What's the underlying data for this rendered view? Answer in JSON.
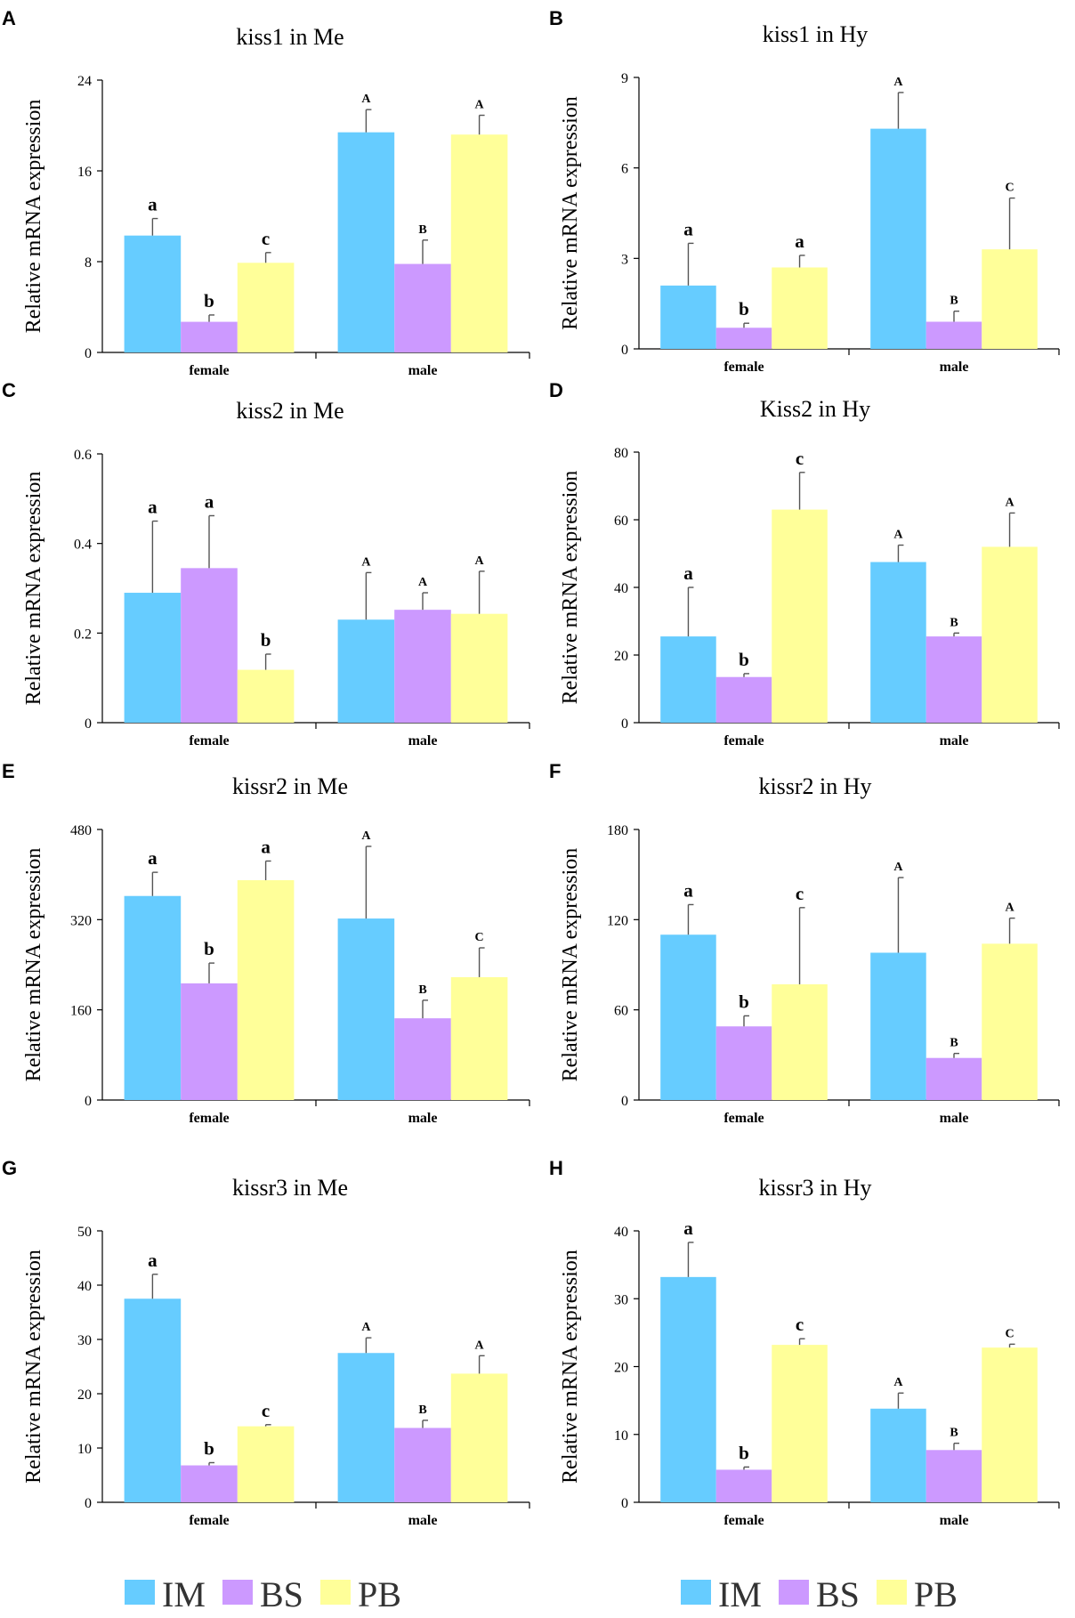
{
  "colors": {
    "IM": "#66ccff",
    "BS": "#cc99ff",
    "PB": "#ffff99"
  },
  "legend": [
    "IM",
    "BS",
    "PB"
  ],
  "chart_data": [
    {
      "panel": "A",
      "type": "bar",
      "title": "kiss1 in Me",
      "ylabel": "Relative mRNA expression",
      "categories": [
        "female",
        "male"
      ],
      "yticks": [
        "0",
        "8",
        "16",
        "24"
      ],
      "ylim": [
        0,
        24
      ],
      "series": [
        {
          "name": "IM",
          "values": [
            10.3,
            19.4
          ],
          "errors": [
            1.5,
            2.0
          ],
          "labels": [
            "a",
            "A"
          ]
        },
        {
          "name": "BS",
          "values": [
            2.7,
            7.8
          ],
          "errors": [
            0.6,
            2.1
          ],
          "labels": [
            "b",
            "B"
          ]
        },
        {
          "name": "PB",
          "values": [
            7.9,
            19.2
          ],
          "errors": [
            0.9,
            1.7
          ],
          "labels": [
            "c",
            "A"
          ]
        }
      ]
    },
    {
      "panel": "B",
      "type": "bar",
      "title": "kiss1 in Hy",
      "ylabel": "Relative mRNA expression",
      "categories": [
        "female",
        "male"
      ],
      "yticks": [
        "0",
        "3",
        "6",
        "9"
      ],
      "ylim": [
        0,
        9
      ],
      "series": [
        {
          "name": "IM",
          "values": [
            2.1,
            7.3
          ],
          "errors": [
            1.4,
            1.2
          ],
          "labels": [
            "a",
            "A"
          ]
        },
        {
          "name": "BS",
          "values": [
            0.7,
            0.9
          ],
          "errors": [
            0.15,
            0.35
          ],
          "labels": [
            "b",
            "B"
          ]
        },
        {
          "name": "PB",
          "values": [
            2.7,
            3.3
          ],
          "errors": [
            0.4,
            1.7
          ],
          "labels": [
            "a",
            "C"
          ]
        }
      ]
    },
    {
      "panel": "C",
      "type": "bar",
      "title": "kiss2 in Me",
      "ylabel": "Relative mRNA expression",
      "categories": [
        "female",
        "male"
      ],
      "yticks": [
        "0",
        "0.2",
        "0.4",
        "0.6"
      ],
      "ylim": [
        0,
        0.6
      ],
      "series": [
        {
          "name": "IM",
          "values": [
            0.29,
            0.23
          ],
          "errors": [
            0.16,
            0.105
          ],
          "labels": [
            "a",
            "A"
          ]
        },
        {
          "name": "BS",
          "values": [
            0.345,
            0.252
          ],
          "errors": [
            0.117,
            0.038
          ],
          "labels": [
            "a",
            "A"
          ]
        },
        {
          "name": "PB",
          "values": [
            0.118,
            0.243
          ],
          "errors": [
            0.035,
            0.095
          ],
          "labels": [
            "b",
            "A"
          ]
        }
      ]
    },
    {
      "panel": "D",
      "type": "bar",
      "title": "Kiss2 in Hy",
      "ylabel": "Relative mRNA expression",
      "categories": [
        "female",
        "male"
      ],
      "yticks": [
        "0",
        "20",
        "40",
        "60",
        "80"
      ],
      "ylim": [
        0,
        80
      ],
      "series": [
        {
          "name": "IM",
          "values": [
            25.5,
            47.5
          ],
          "errors": [
            14.5,
            5.0
          ],
          "labels": [
            "a",
            "A"
          ]
        },
        {
          "name": "BS",
          "values": [
            13.5,
            25.5
          ],
          "errors": [
            1.0,
            1.0
          ],
          "labels": [
            "b",
            "B"
          ]
        },
        {
          "name": "PB",
          "values": [
            63.0,
            52.0
          ],
          "errors": [
            11.0,
            10.0
          ],
          "labels": [
            "c",
            "A"
          ]
        }
      ]
    },
    {
      "panel": "E",
      "type": "bar",
      "title": "kissr2 in Me",
      "ylabel": "Relative mRNA expression",
      "categories": [
        "female",
        "male"
      ],
      "yticks": [
        "0",
        "160",
        "320",
        "480"
      ],
      "ylim": [
        0,
        480
      ],
      "series": [
        {
          "name": "IM",
          "values": [
            362,
            322
          ],
          "errors": [
            42,
            128
          ],
          "labels": [
            "a",
            "A"
          ]
        },
        {
          "name": "BS",
          "values": [
            207,
            145
          ],
          "errors": [
            36,
            32
          ],
          "labels": [
            "b",
            "B"
          ]
        },
        {
          "name": "PB",
          "values": [
            390,
            218
          ],
          "errors": [
            34,
            52
          ],
          "labels": [
            "a",
            "C"
          ]
        }
      ]
    },
    {
      "panel": "F",
      "type": "bar",
      "title": "kissr2 in Hy",
      "ylabel": "Relative mRNA expression",
      "categories": [
        "female",
        "male"
      ],
      "yticks": [
        "0",
        "60",
        "120",
        "180"
      ],
      "ylim": [
        0,
        180
      ],
      "series": [
        {
          "name": "IM",
          "values": [
            110,
            98
          ],
          "errors": [
            20,
            50
          ],
          "labels": [
            "a",
            "A"
          ]
        },
        {
          "name": "BS",
          "values": [
            49,
            28
          ],
          "errors": [
            7,
            3
          ],
          "labels": [
            "b",
            "B"
          ]
        },
        {
          "name": "PB",
          "values": [
            77,
            104
          ],
          "errors": [
            51,
            17
          ],
          "labels": [
            "c",
            "A"
          ]
        }
      ]
    },
    {
      "panel": "G",
      "type": "bar",
      "title": "kissr3 in Me",
      "ylabel": "Relative mRNA expression",
      "categories": [
        "female",
        "male"
      ],
      "yticks": [
        "0",
        "10",
        "20",
        "30",
        "40",
        "50"
      ],
      "ylim": [
        0,
        50
      ],
      "series": [
        {
          "name": "IM",
          "values": [
            37.5,
            27.5
          ],
          "errors": [
            4.5,
            2.8
          ],
          "labels": [
            "a",
            "A"
          ]
        },
        {
          "name": "BS",
          "values": [
            6.8,
            13.7
          ],
          "errors": [
            0.5,
            1.4
          ],
          "labels": [
            "b",
            "B"
          ]
        },
        {
          "name": "PB",
          "values": [
            14.0,
            23.7
          ],
          "errors": [
            0.3,
            3.3
          ],
          "labels": [
            "c",
            "A"
          ]
        }
      ]
    },
    {
      "panel": "H",
      "type": "bar",
      "title": "kissr3 in Hy",
      "ylabel": "Relative mRNA expression",
      "categories": [
        "female",
        "male"
      ],
      "yticks": [
        "0",
        "10",
        "20",
        "30",
        "40"
      ],
      "ylim": [
        0,
        40
      ],
      "series": [
        {
          "name": "IM",
          "values": [
            33.2,
            13.8
          ],
          "errors": [
            5.1,
            2.3
          ],
          "labels": [
            "a",
            "A"
          ]
        },
        {
          "name": "BS",
          "values": [
            4.8,
            7.7
          ],
          "errors": [
            0.4,
            1.0
          ],
          "labels": [
            "b",
            "B"
          ]
        },
        {
          "name": "PB",
          "values": [
            23.2,
            22.8
          ],
          "errors": [
            0.9,
            0.5
          ],
          "labels": [
            "c",
            "C"
          ]
        }
      ]
    }
  ]
}
